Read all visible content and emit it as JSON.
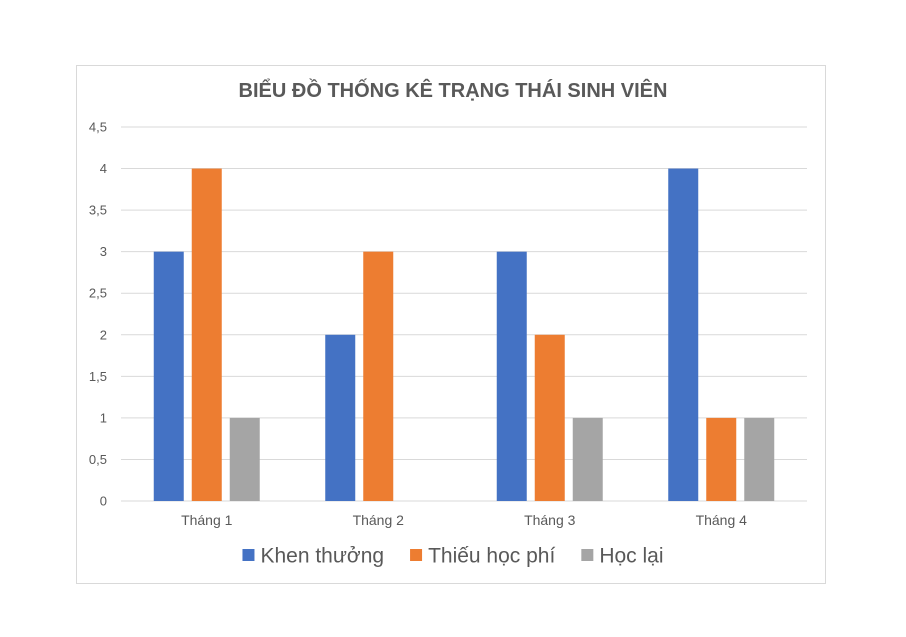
{
  "chart_data": {
    "type": "bar",
    "title": "BIỂU ĐỒ THỐNG KÊ TRẠNG THÁI SINH VIÊN",
    "categories": [
      "Tháng 1",
      "Tháng 2",
      "Tháng 3",
      "Tháng 4"
    ],
    "series": [
      {
        "name": "Khen thưởng",
        "color": "#4472c4",
        "values": [
          3,
          2,
          3,
          4
        ]
      },
      {
        "name": "Thiếu học phí",
        "color": "#ed7d31",
        "values": [
          4,
          3,
          2,
          1
        ]
      },
      {
        "name": "Học lại",
        "color": "#a5a5a5",
        "values": [
          1,
          0,
          1,
          1
        ]
      }
    ],
    "ylim": [
      0,
      4.5
    ],
    "yticks": [
      "0",
      "0,5",
      "1",
      "1,5",
      "2",
      "2,5",
      "3",
      "3,5",
      "4",
      "4,5"
    ],
    "xlabel": "",
    "ylabel": "",
    "grid": true,
    "legend_position": "bottom"
  }
}
